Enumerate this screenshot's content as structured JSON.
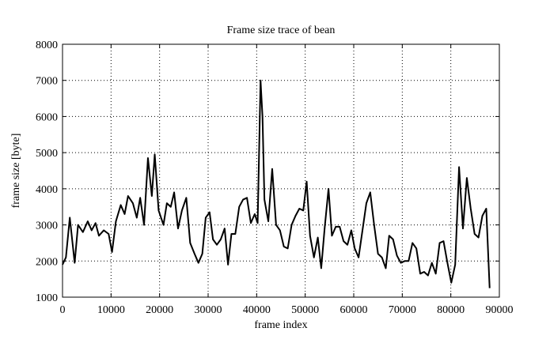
{
  "chart_data": {
    "type": "line",
    "title": "Frame size trace of bean",
    "x_label": "frame index",
    "y_label": "frame size [byte]",
    "xlim": [
      0,
      90000
    ],
    "xticks": [
      0,
      10000,
      20000,
      30000,
      40000,
      50000,
      60000,
      70000,
      80000,
      90000
    ],
    "ylim": [
      1000,
      8000
    ],
    "yticks": [
      1000,
      2000,
      3000,
      4000,
      5000,
      6000,
      7000,
      8000
    ],
    "grid": true,
    "series": [
      {
        "color": "#000000",
        "x": [
          0,
          700,
          1500,
          2500,
          3200,
          4200,
          5200,
          6000,
          6800,
          7500,
          8500,
          9500,
          10200,
          11000,
          12000,
          12800,
          13500,
          14500,
          15300,
          16000,
          16800,
          17600,
          18400,
          19000,
          19800,
          20800,
          21500,
          22300,
          23000,
          23800,
          24600,
          25500,
          26300,
          27200,
          28000,
          28800,
          29500,
          30300,
          31000,
          31800,
          32600,
          33400,
          34100,
          34800,
          35600,
          36400,
          37200,
          38000,
          38800,
          39600,
          40200,
          40800,
          41200,
          41600,
          42400,
          43200,
          44000,
          44800,
          45600,
          46400,
          47200,
          48000,
          48800,
          49600,
          50300,
          51000,
          51800,
          52600,
          53300,
          54000,
          54800,
          55500,
          56300,
          57100,
          57900,
          58700,
          59500,
          60200,
          61000,
          61800,
          62600,
          63400,
          64200,
          65000,
          65800,
          66600,
          67300,
          68100,
          68900,
          69700,
          70500,
          71300,
          72100,
          72900,
          73700,
          74500,
          75300,
          76100,
          76900,
          77700,
          78500,
          79300,
          80100,
          80900,
          81700,
          82500,
          83300,
          84100,
          84900,
          85700,
          86500,
          87300,
          88000
        ],
        "values": [
          1900,
          2100,
          3200,
          1950,
          3000,
          2800,
          3100,
          2850,
          3050,
          2700,
          2850,
          2750,
          2250,
          3100,
          3550,
          3300,
          3800,
          3600,
          3200,
          3750,
          3000,
          4850,
          3800,
          4950,
          3400,
          3000,
          3600,
          3500,
          3900,
          2900,
          3400,
          3750,
          2500,
          2200,
          1950,
          2200,
          3200,
          3350,
          2600,
          2450,
          2600,
          2900,
          1900,
          2750,
          2750,
          3500,
          3700,
          3750,
          3050,
          3300,
          3050,
          7000,
          6000,
          3700,
          3100,
          4550,
          3000,
          2850,
          2400,
          2350,
          3000,
          3250,
          3450,
          3400,
          4200,
          2700,
          2100,
          2650,
          1800,
          2900,
          4000,
          2700,
          2950,
          2950,
          2550,
          2450,
          2850,
          2350,
          2100,
          2850,
          3600,
          3900,
          3000,
          2200,
          2100,
          1800,
          2700,
          2600,
          2150,
          1950,
          2000,
          2000,
          2500,
          2350,
          1650,
          1700,
          1600,
          1950,
          1650,
          2500,
          2550,
          1950,
          1400,
          1900,
          4600,
          2900,
          4300,
          3450,
          2750,
          2650,
          3250,
          3450,
          1250
        ]
      }
    ]
  }
}
